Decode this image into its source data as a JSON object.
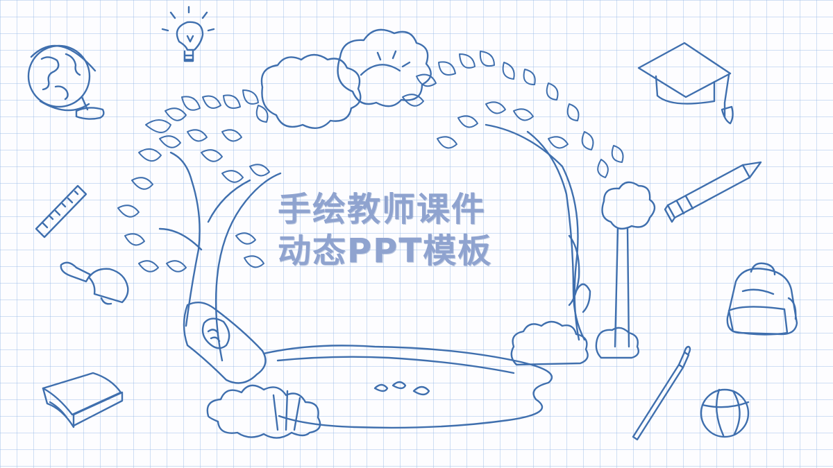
{
  "slide": {
    "title_line_1": "手绘教师课件",
    "title_line_2": "动态PPT模板"
  },
  "colors": {
    "ink": "#3f6fae",
    "grid": "#9cb9e6",
    "title": "#8fa3cf",
    "paper": "#fdfdff"
  },
  "doodles": [
    "globe-icon",
    "lightbulb-icon",
    "graduation-cap-icon",
    "ruler-icon",
    "bell-icon",
    "book-icon",
    "pencil-icon",
    "backpack-icon",
    "paintbrush-icon",
    "basketball-icon"
  ]
}
